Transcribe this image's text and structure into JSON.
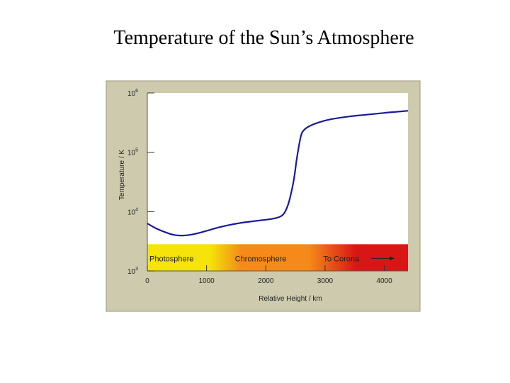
{
  "slide": {
    "title": "Temperature of the Sun’s Atmosphere"
  },
  "chart_data": {
    "type": "line",
    "title": "",
    "xlabel": "Relative Height / km",
    "ylabel": "Temperature / K",
    "xlim": [
      0,
      4400
    ],
    "ylim_log10": [
      3,
      6
    ],
    "y_scale": "log",
    "x_ticks": [
      "0",
      "1000",
      "2000",
      "3000",
      "4000"
    ],
    "x_tick_values": [
      0,
      1000,
      2000,
      3000,
      4000
    ],
    "y_ticks": [
      {
        "base": "10",
        "exp": "3",
        "value": 1000
      },
      {
        "base": "10",
        "exp": "4",
        "value": 10000
      },
      {
        "base": "10",
        "exp": "5",
        "value": 100000
      },
      {
        "base": "10",
        "exp": "6",
        "value": 1000000
      }
    ],
    "grid": false,
    "series": [
      {
        "color": "#1a1a9a",
        "x": [
          0,
          150,
          300,
          450,
          600,
          750,
          900,
          1050,
          1200,
          1400,
          1600,
          1800,
          2000,
          2150,
          2250,
          2320,
          2380,
          2430,
          2480,
          2520,
          2560,
          2600,
          2650,
          2750,
          2900,
          3100,
          3400,
          3700,
          4000,
          4200,
          4400
        ],
        "y": [
          6300,
          5200,
          4500,
          4050,
          3950,
          4100,
          4450,
          4900,
          5400,
          6000,
          6500,
          6900,
          7300,
          7700,
          8300,
          9700,
          13500,
          21000,
          38000,
          75000,
          130000,
          200000,
          240000,
          280000,
          320000,
          360000,
          400000,
          430000,
          460000,
          480000,
          500000
        ]
      }
    ],
    "bands": [
      {
        "label": "Photosphere",
        "from": 0,
        "to": 1000,
        "color": "#f5e30a"
      },
      {
        "label": "Chromosphere",
        "from": 1000,
        "to": 2850,
        "color": "#f58a1a"
      },
      {
        "label": "To Corona",
        "from": 2850,
        "to": 4400,
        "color": "#d81616",
        "arrow": true
      }
    ],
    "band_range_log10": [
      3,
      3.45
    ],
    "colors": {
      "panel": "#cdcaad",
      "panel_border": "#9a9780",
      "plot_bg": "#ffffff",
      "axis": "#555555"
    }
  }
}
